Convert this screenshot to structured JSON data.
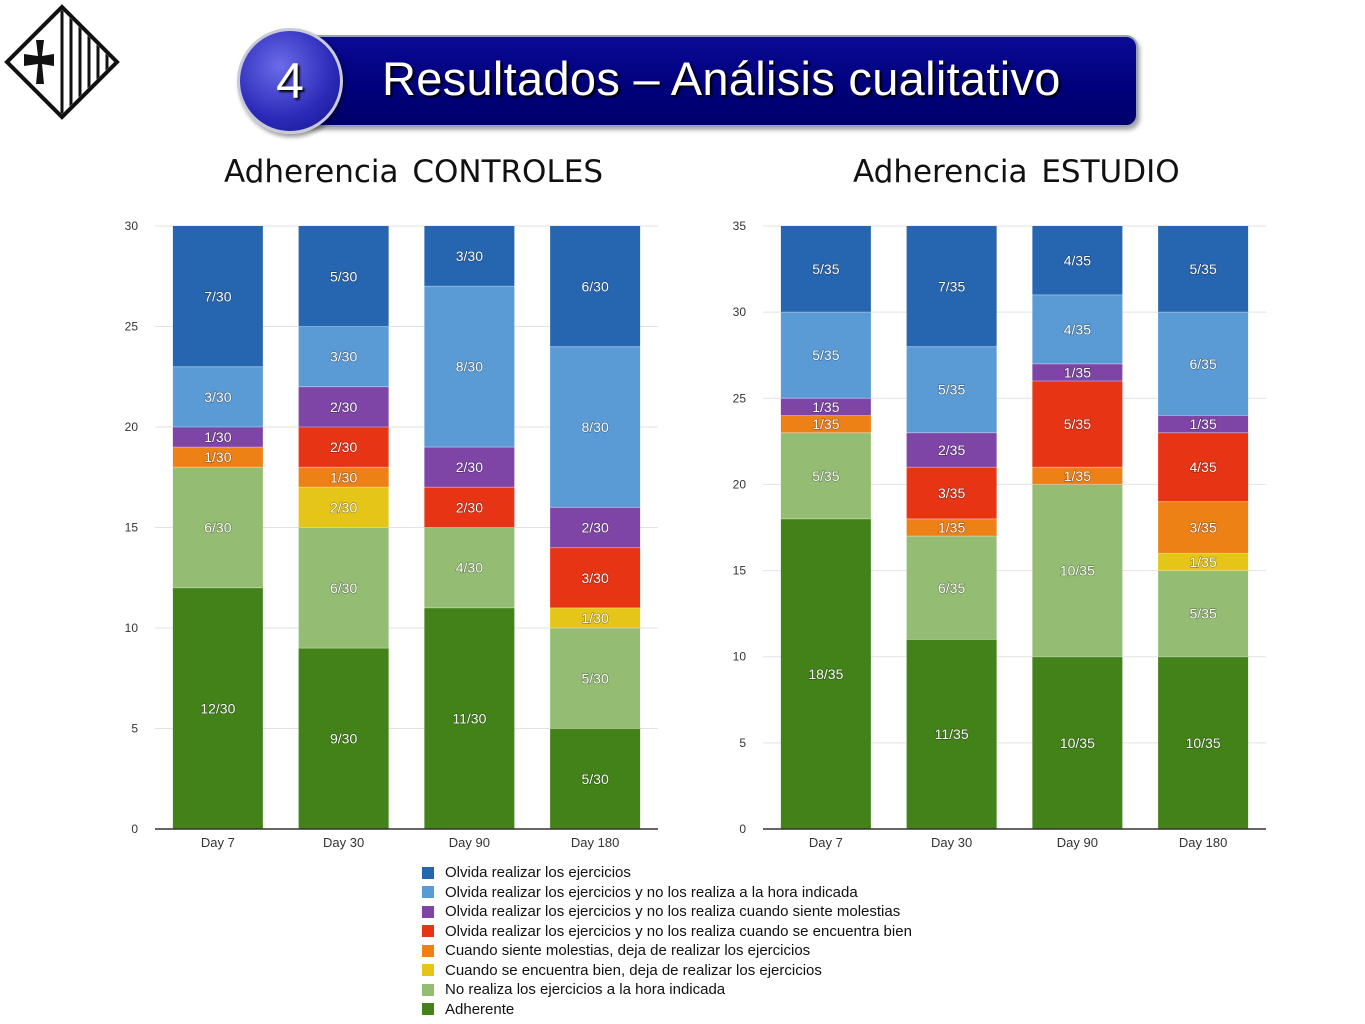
{
  "header": {
    "section_number": "4",
    "title": "Resultados – Análisis cualitativo"
  },
  "colors": {
    "banner": "#00007a",
    "categories": [
      "#2666b1",
      "#5b9bd5",
      "#7f45a6",
      "#e63414",
      "#ee8116",
      "#e6c519",
      "#94bc73",
      "#438119"
    ]
  },
  "legend": {
    "items": [
      {
        "label": "Olvida realizar los ejercicios",
        "color": "#2666b1"
      },
      {
        "label": "Olvida realizar los ejercicios y no los realiza a la hora indicada",
        "color": "#5b9bd5"
      },
      {
        "label": "Olvida realizar los ejercicios y no los realiza cuando siente molestias",
        "color": "#7f45a6"
      },
      {
        "label": "Olvida realizar los ejercicios y no los realiza cuando se encuentra bien",
        "color": "#e63414"
      },
      {
        "label": "Cuando siente molestias, deja de realizar los ejercicios",
        "color": "#ee8116"
      },
      {
        "label": "Cuando se encuentra bien, deja de realizar los ejercicios",
        "color": "#e6c519"
      },
      {
        "label": "No realiza los ejercicios a la hora indicada",
        "color": "#94bc73"
      },
      {
        "label": "Adherente",
        "color": "#438119"
      }
    ]
  },
  "chart_data": [
    {
      "type": "bar",
      "stacked": true,
      "title": "Adherencia CONTROLES",
      "categories": [
        "Day 7",
        "Day 30",
        "Day 90",
        "Day 180"
      ],
      "ylim": [
        0,
        30
      ],
      "yticks": [
        "0",
        "5",
        "10",
        "15",
        "20",
        "25",
        "30"
      ],
      "grid": true,
      "series": [
        {
          "name": "Adherente",
          "values": [
            12,
            9,
            11,
            5
          ],
          "labels": [
            "12/30",
            "9/30",
            "11/30",
            "5/30"
          ]
        },
        {
          "name": "No realiza los ejercicios a la hora indicada",
          "values": [
            6,
            6,
            4,
            5
          ],
          "labels": [
            "6/30",
            "6/30",
            "4/30",
            "5/30"
          ]
        },
        {
          "name": "Cuando se encuentra bien, deja de realizar los ejercicios",
          "values": [
            0,
            2,
            0,
            1
          ],
          "labels": [
            "",
            "2/30",
            "",
            "1/30"
          ]
        },
        {
          "name": "Cuando siente molestias, deja de realizar los ejercicios",
          "values": [
            1,
            1,
            0,
            0
          ],
          "labels": [
            "1/30",
            "1/30",
            "",
            ""
          ]
        },
        {
          "name": "Olvida realizar los ejercicios y no los realiza cuando se encuentra bien",
          "values": [
            0,
            2,
            2,
            3
          ],
          "labels": [
            "",
            "2/30",
            "2/30",
            "3/30"
          ]
        },
        {
          "name": "Olvida realizar los ejercicios y no los realiza cuando siente molestias",
          "values": [
            1,
            2,
            2,
            2
          ],
          "labels": [
            "1/30",
            "2/30",
            "2/30",
            "2/30"
          ]
        },
        {
          "name": "Olvida realizar los ejercicios y no los realiza a la hora indicada",
          "values": [
            3,
            3,
            8,
            8
          ],
          "labels": [
            "3/30",
            "3/30",
            "8/30",
            "8/30"
          ]
        },
        {
          "name": "Olvida realizar los ejercicios",
          "values": [
            7,
            5,
            3,
            6
          ],
          "labels": [
            "7/30",
            "5/30",
            "3/30",
            "6/30"
          ]
        }
      ]
    },
    {
      "type": "bar",
      "stacked": true,
      "title": "Adherencia ESTUDIO",
      "categories": [
        "Day 7",
        "Day 30",
        "Day 90",
        "Day 180"
      ],
      "ylim": [
        0,
        35
      ],
      "yticks": [
        "0",
        "5",
        "10",
        "15",
        "20",
        "25",
        "30",
        "35"
      ],
      "grid": true,
      "series": [
        {
          "name": "Adherente",
          "values": [
            18,
            11,
            10,
            10
          ],
          "labels": [
            "18/35",
            "11/35",
            "10/35",
            "10/35"
          ]
        },
        {
          "name": "No realiza los ejercicios a la hora indicada",
          "values": [
            5,
            6,
            10,
            5
          ],
          "labels": [
            "5/35",
            "6/35",
            "10/35",
            "5/35"
          ]
        },
        {
          "name": "Cuando se encuentra bien, deja de realizar los ejercicios",
          "values": [
            0,
            0,
            0,
            1
          ],
          "labels": [
            "",
            "",
            "",
            "1/35"
          ]
        },
        {
          "name": "Cuando siente molestias, deja de realizar los ejercicios",
          "values": [
            1,
            1,
            1,
            3
          ],
          "labels": [
            "1/35",
            "1/35",
            "1/35",
            "3/35"
          ]
        },
        {
          "name": "Olvida realizar los ejercicios y no los realiza cuando se encuentra bien",
          "values": [
            0,
            3,
            5,
            4
          ],
          "labels": [
            "",
            "3/35",
            "5/35",
            "4/35"
          ]
        },
        {
          "name": "Olvida realizar los ejercicios y no los realiza cuando siente molestias",
          "values": [
            1,
            2,
            1,
            1
          ],
          "labels": [
            "1/35",
            "2/35",
            "1/35",
            "1/35"
          ]
        },
        {
          "name": "Olvida realizar los ejercicios y no los realiza a la hora indicada",
          "values": [
            5,
            5,
            4,
            6
          ],
          "labels": [
            "5/35",
            "5/35",
            "4/35",
            "6/35"
          ]
        },
        {
          "name": "Olvida realizar los ejercicios",
          "values": [
            5,
            7,
            4,
            5
          ],
          "labels": [
            "5/35",
            "7/35",
            "4/35",
            "5/35"
          ]
        }
      ]
    }
  ]
}
